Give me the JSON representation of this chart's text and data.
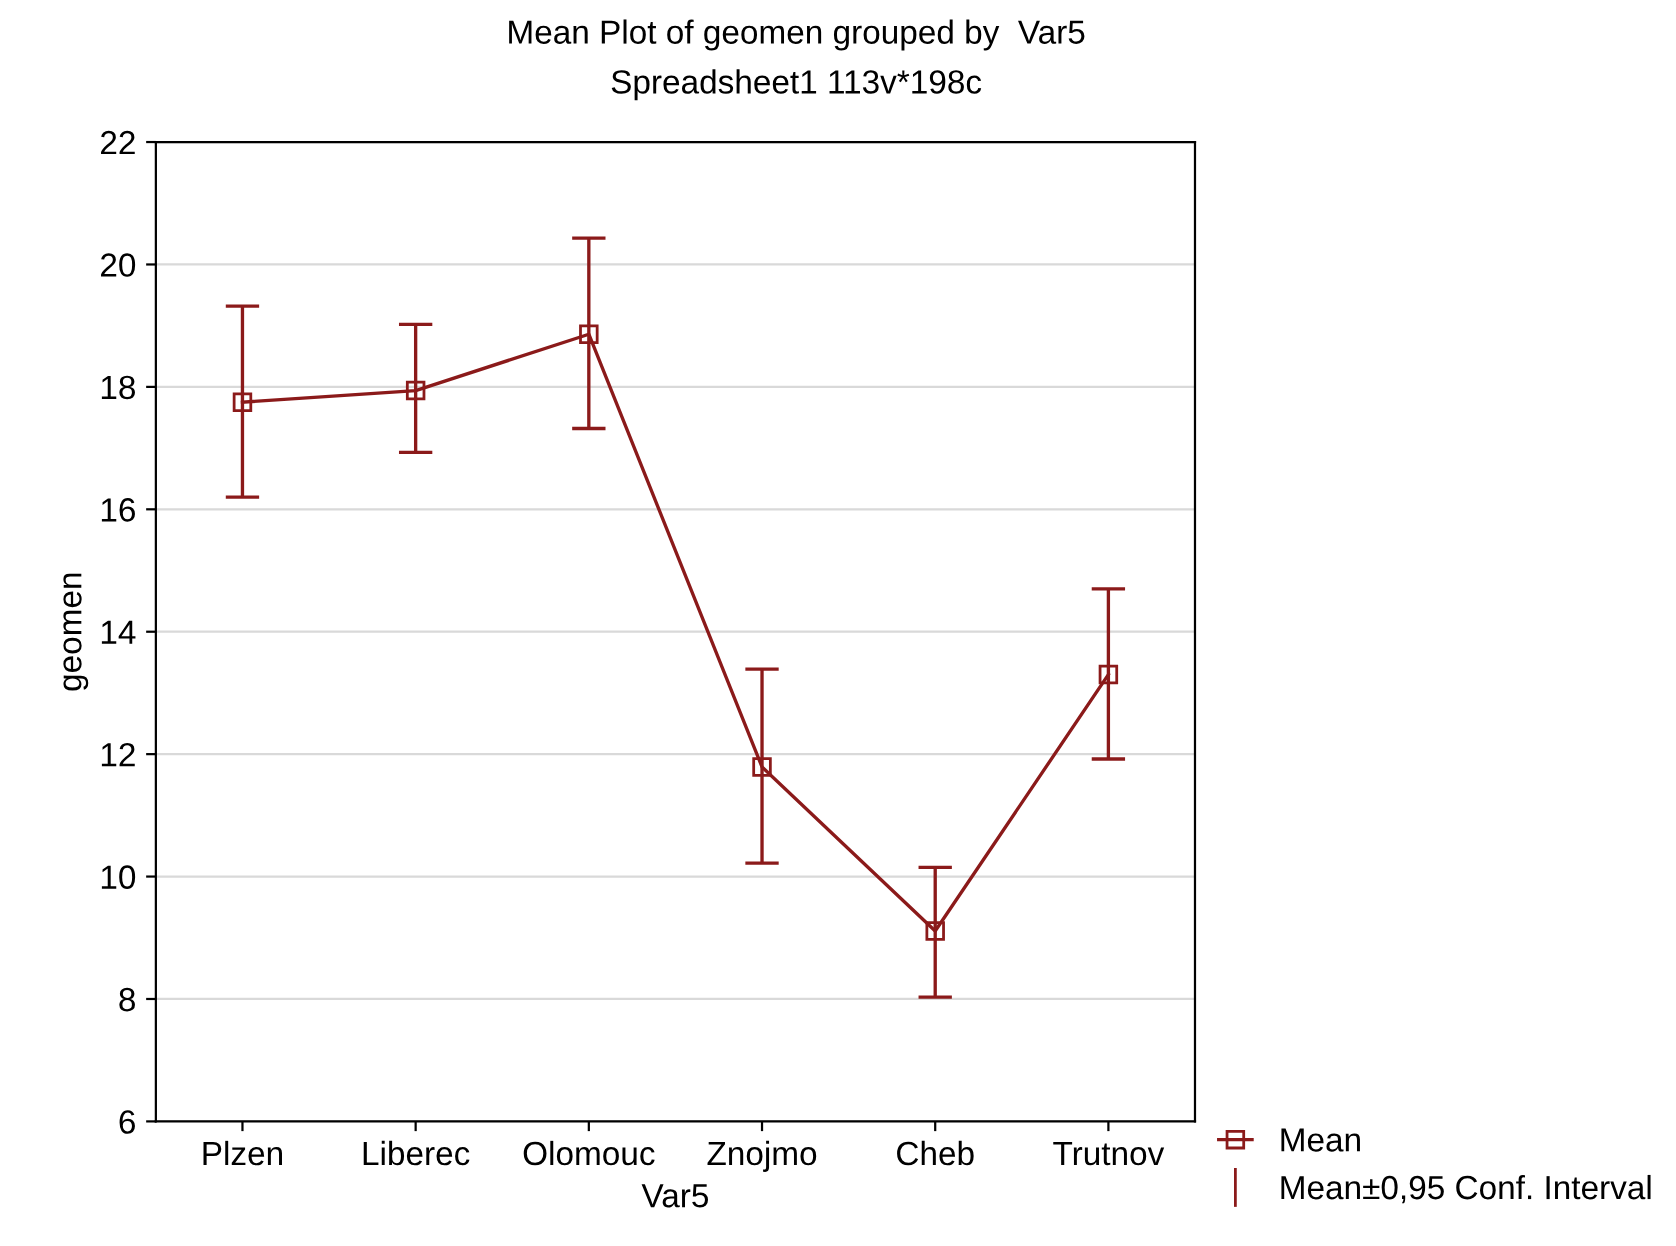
{
  "chart_data": {
    "type": "line",
    "title": "Mean Plot of geomen grouped by  Var5",
    "subtitle": "Spreadsheet1 113v*198c",
    "xlabel": "Var5",
    "ylabel": "geomen",
    "categories": [
      "Plzen",
      "Liberec",
      "Olomouc",
      "Znojmo",
      "Cheb",
      "Trutnov"
    ],
    "series": [
      {
        "name": "Mean",
        "color": "#8b1a1a",
        "values": [
          17.75,
          17.94,
          18.86,
          11.79,
          9.11,
          13.3
        ],
        "errors": [
          [
            16.2,
            19.32
          ],
          [
            16.93,
            19.02
          ],
          [
            17.32,
            20.43
          ],
          [
            10.22,
            13.39
          ],
          [
            8.03,
            10.15
          ],
          [
            11.92,
            14.7
          ]
        ]
      }
    ],
    "annotations": [
      "Mean±0,95 Conf. Interval"
    ],
    "ylim": [
      6,
      22
    ],
    "yticks": [
      6,
      8,
      10,
      12,
      14,
      16,
      18,
      20,
      22
    ],
    "grid": "y",
    "legend": "bottom right",
    "marker": "square",
    "line_style": "solid"
  }
}
